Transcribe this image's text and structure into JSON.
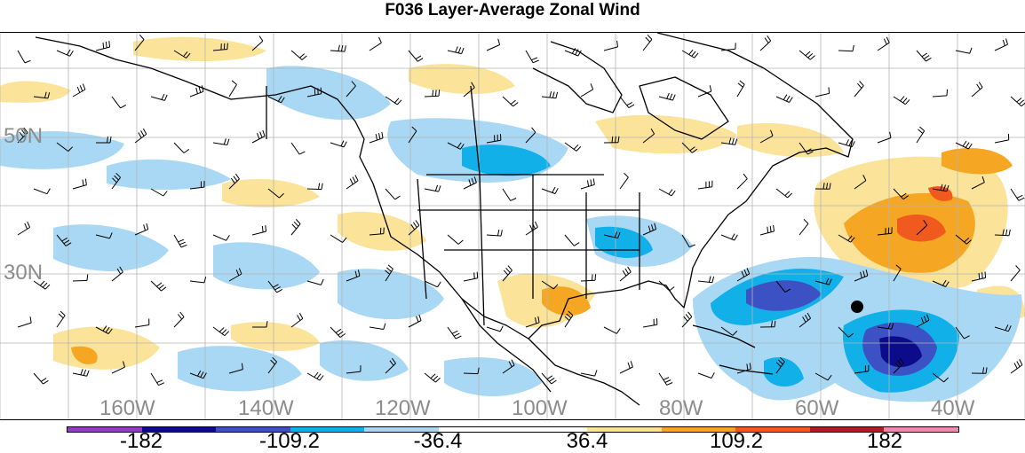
{
  "title": "F036 Layer-Average Zonal Wind",
  "lat_labels": [
    "50N",
    "30N"
  ],
  "lon_labels": [
    "160W",
    "140W",
    "120W",
    "100W",
    "80W",
    "60W",
    "40W"
  ],
  "colorbar": {
    "colors": [
      "#8c3fc0",
      "#0b0b8c",
      "#3c52c4",
      "#12b0e8",
      "#a8d8f4",
      "#ffffff",
      "#ffffff",
      "#fbe49a",
      "#f5a623",
      "#f05a1e",
      "#b01e23",
      "#f288b4"
    ],
    "labels": [
      "-182",
      "-109.2",
      "-36.4",
      "36.4",
      "109.2",
      "182"
    ]
  },
  "map_colors": {
    "light_blue": "#a8d8f4",
    "blue": "#12b0e8",
    "mid_blue": "#3c52c4",
    "dark_blue": "#0b0b8c",
    "light_yellow": "#fbe49a",
    "orange": "#f5a623",
    "red_orange": "#f05a1e"
  }
}
